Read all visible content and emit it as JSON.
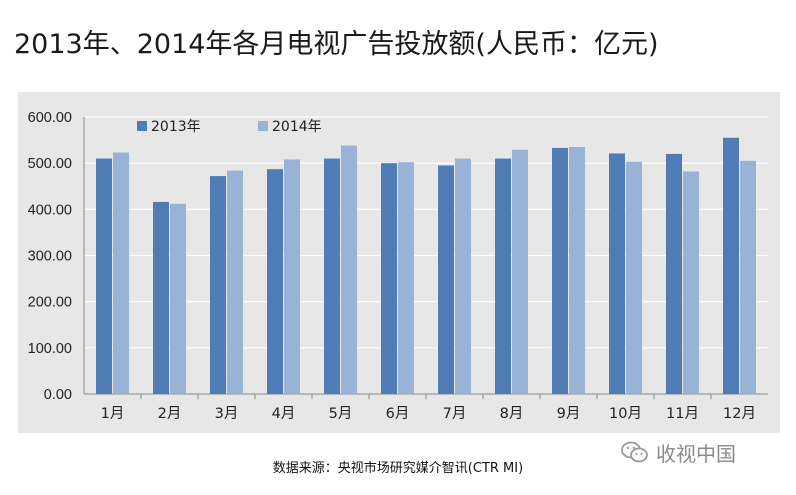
{
  "title": "2013年、2014年各月电视广告投放额(人民币：亿元)",
  "source": "数据来源：央视市场研究媒介智讯(CTR MI)",
  "watermark": "收视中国",
  "colors": {
    "series2013": "#4f7cb5",
    "series2014": "#98b3d6",
    "plot_bg": "#e7e7e7",
    "grid": "#ffffff"
  },
  "chart_data": {
    "type": "bar",
    "categories": [
      "1月",
      "2月",
      "3月",
      "4月",
      "5月",
      "6月",
      "7月",
      "8月",
      "9月",
      "10月",
      "11月",
      "12月"
    ],
    "series": [
      {
        "name": "2013年",
        "values": [
          510,
          416,
          472,
          487,
          510,
          500,
          495,
          510,
          533,
          521,
          520,
          555
        ]
      },
      {
        "name": "2014年",
        "values": [
          523,
          412,
          484,
          508,
          538,
          502,
          510,
          529,
          535,
          503,
          482,
          505
        ]
      }
    ],
    "yticks": [
      "0.00",
      "100.00",
      "200.00",
      "300.00",
      "400.00",
      "500.00",
      "600.00"
    ],
    "ylim": [
      0,
      600
    ],
    "grid": true,
    "legend_position": "top-left"
  }
}
